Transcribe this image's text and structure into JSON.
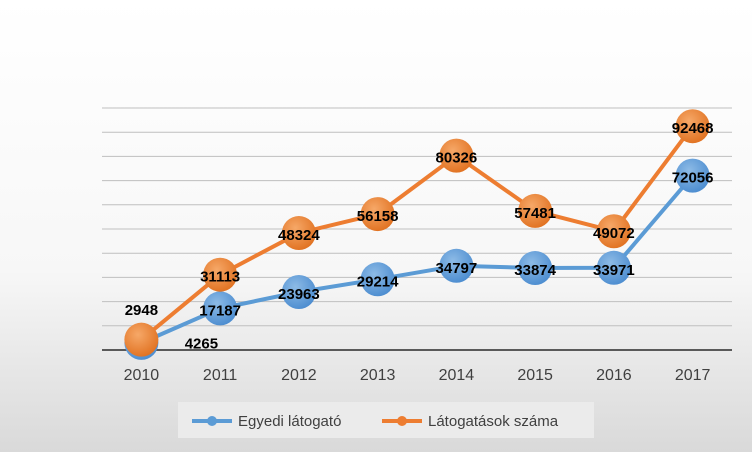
{
  "chart_data": {
    "type": "line",
    "categories": [
      "2010",
      "2011",
      "2012",
      "2013",
      "2014",
      "2015",
      "2016",
      "2017"
    ],
    "series": [
      {
        "name": "Egyedi látogató",
        "color": "#5B9BD5",
        "values": [
          2948,
          17187,
          23963,
          29214,
          34797,
          33874,
          33971,
          72056
        ]
      },
      {
        "name": "Látogatások száma",
        "color": "#ED7D31",
        "values": [
          4265,
          31113,
          48324,
          56158,
          80326,
          57481,
          49072,
          92468
        ]
      }
    ],
    "ylim": [
      0,
      100000
    ],
    "grid": true,
    "legend_position": "bottom",
    "title": "",
    "xlabel": "",
    "ylabel": ""
  }
}
